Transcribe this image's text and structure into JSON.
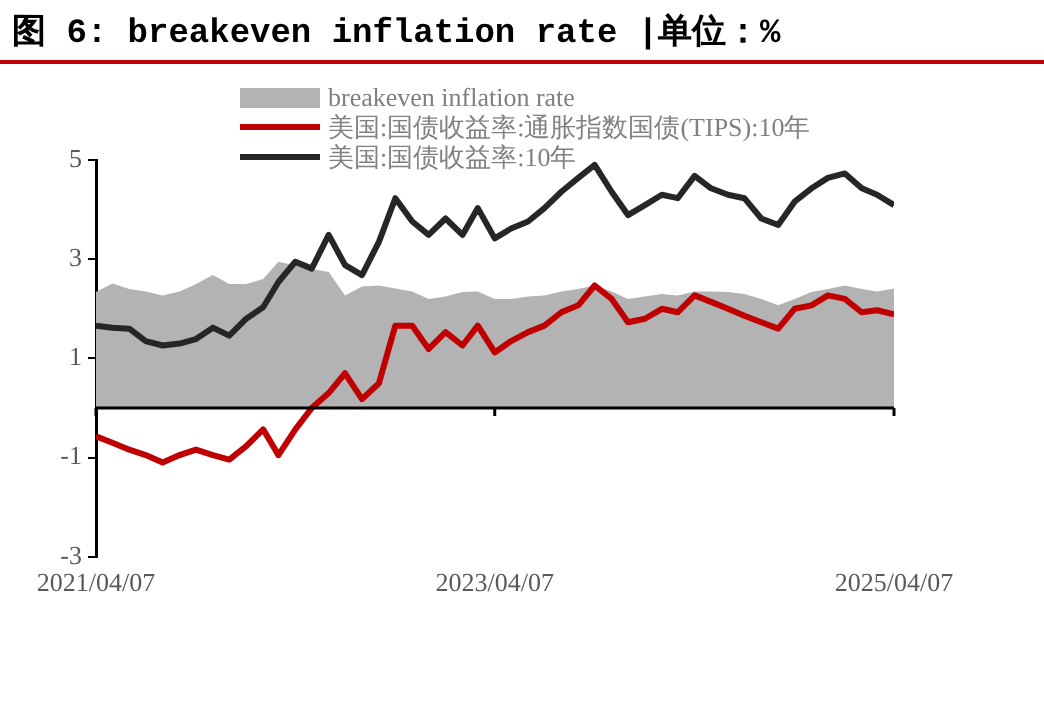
{
  "chart_data": {
    "type": "line",
    "title": "图 6: breakeven inflation rate |单位：%",
    "x": [
      "2021-04-07",
      "2021-05-07",
      "2021-06-07",
      "2021-07-07",
      "2021-08-07",
      "2021-09-07",
      "2021-10-07",
      "2021-11-07",
      "2021-12-07",
      "2022-01-07",
      "2022-02-07",
      "2022-03-07",
      "2022-04-07",
      "2022-05-07",
      "2022-06-07",
      "2022-07-07",
      "2022-08-07",
      "2022-09-07",
      "2022-10-07",
      "2022-11-07",
      "2022-12-07",
      "2023-01-07",
      "2023-02-07",
      "2023-03-07",
      "2023-04-07",
      "2023-05-07",
      "2023-06-07",
      "2023-07-07",
      "2023-08-07",
      "2023-09-07",
      "2023-10-07",
      "2023-11-07",
      "2023-12-07",
      "2024-01-07",
      "2024-02-07",
      "2024-03-07",
      "2024-04-07",
      "2024-05-07",
      "2024-06-07",
      "2024-07-07",
      "2024-08-07",
      "2024-09-07",
      "2024-10-07",
      "2024-11-07",
      "2024-12-07",
      "2025-01-07",
      "2025-02-07",
      "2025-03-07",
      "2025-04-07"
    ],
    "series": [
      {
        "name": "breakeven inflation rate",
        "type": "area",
        "color": "#b3b3b3",
        "values": [
          2.34,
          2.51,
          2.4,
          2.35,
          2.27,
          2.35,
          2.5,
          2.68,
          2.5,
          2.5,
          2.6,
          2.95,
          2.88,
          2.8,
          2.74,
          2.27,
          2.45,
          2.47,
          2.41,
          2.35,
          2.2,
          2.25,
          2.34,
          2.35,
          2.2,
          2.2,
          2.25,
          2.27,
          2.35,
          2.4,
          2.47,
          2.35,
          2.2,
          2.25,
          2.3,
          2.27,
          2.35,
          2.35,
          2.34,
          2.3,
          2.2,
          2.07,
          2.2,
          2.34,
          2.4,
          2.47,
          2.4,
          2.35,
          2.41
        ]
      },
      {
        "name": "美国:国债收益率:通胀指数国债(TIPS):10年",
        "type": "line",
        "color": "#c00000",
        "values": [
          -0.57,
          -0.7,
          -0.84,
          -0.95,
          -1.1,
          -0.95,
          -0.84,
          -0.95,
          -1.04,
          -0.77,
          -0.43,
          -0.95,
          -0.43,
          0,
          0.3,
          0.7,
          0.18,
          0.5,
          1.66,
          1.66,
          1.19,
          1.53,
          1.26,
          1.66,
          1.12,
          1.35,
          1.53,
          1.66,
          1.93,
          2.07,
          2.47,
          2.2,
          1.73,
          1.8,
          2.0,
          1.93,
          2.27,
          2.14,
          2.0,
          1.86,
          1.73,
          1.6,
          2.0,
          2.07,
          2.27,
          2.2,
          1.93,
          1.97,
          1.89
        ]
      },
      {
        "name": "美国:国债收益率:10年",
        "type": "line",
        "color": "#262626",
        "values": [
          1.66,
          1.62,
          1.6,
          1.35,
          1.26,
          1.3,
          1.39,
          1.62,
          1.46,
          1.8,
          2.03,
          2.54,
          2.95,
          2.81,
          3.49,
          2.88,
          2.68,
          3.35,
          4.23,
          3.76,
          3.49,
          3.82,
          3.49,
          4.03,
          3.42,
          3.62,
          3.76,
          4.03,
          4.36,
          4.64,
          4.9,
          4.36,
          3.89,
          4.09,
          4.3,
          4.23,
          4.68,
          4.43,
          4.3,
          4.23,
          3.82,
          3.69,
          4.16,
          4.43,
          4.64,
          4.73,
          4.43,
          4.3,
          4.09
        ]
      }
    ],
    "xlim": [
      "2021-04-07",
      "2025-04-07"
    ],
    "xticks": [
      {
        "value": "2021-04-07",
        "label": "2021/04/07"
      },
      {
        "value": "2023-04-07",
        "label": "2023/04/07"
      },
      {
        "value": "2025-04-07",
        "label": "2025/04/07"
      }
    ],
    "ylim": [
      -3,
      5
    ],
    "yticks": [
      -3,
      -1,
      1,
      3,
      5
    ],
    "grid": false,
    "legend": "top",
    "marker": "none",
    "line_style": "solid"
  }
}
